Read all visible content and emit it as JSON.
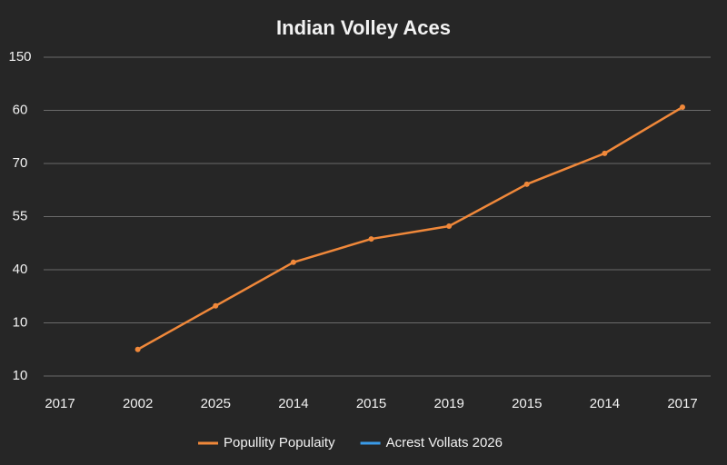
{
  "chart_data": {
    "type": "line",
    "title": "Indian Volley Aces",
    "categories": [
      "2017",
      "2002",
      "2025",
      "2014",
      "2015",
      "2019",
      "2015",
      "2014",
      "2017"
    ],
    "series": [
      {
        "name": "Popullity Populaity",
        "color": "#f0883a",
        "values": [
          null,
          0.5,
          1.32,
          2.14,
          2.58,
          2.82,
          3.61,
          4.19,
          5.06
        ]
      },
      {
        "name": "Acrest Vollats 2026",
        "color": "#3a9be8",
        "values": [
          null,
          null,
          null,
          null,
          null,
          null,
          null,
          null,
          null
        ]
      }
    ],
    "ylim": [
      0,
      6
    ],
    "yticks": [
      {
        "value": 0,
        "label": "10"
      },
      {
        "value": 1,
        "label": "10"
      },
      {
        "value": 2,
        "label": "40"
      },
      {
        "value": 3,
        "label": "55"
      },
      {
        "value": 4,
        "label": "70"
      },
      {
        "value": 5,
        "label": "60"
      },
      {
        "value": 6,
        "label": "150"
      }
    ],
    "grid": true,
    "legend": "bottom"
  }
}
